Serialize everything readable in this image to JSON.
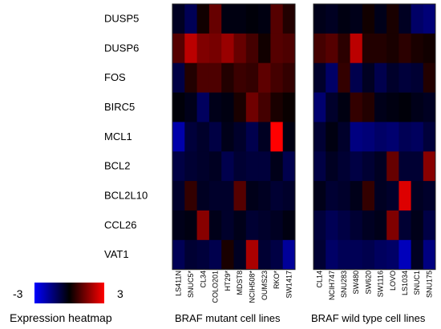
{
  "chart_data": {
    "type": "heatmap",
    "rows": [
      "DUSP5",
      "DUSP6",
      "FOS",
      "BIRC5",
      "MCL1",
      "BCL2",
      "BCL2L10",
      "CCL26",
      "VAT1"
    ],
    "panels": [
      {
        "group_label": "BRAF mutant cell lines",
        "columns": [
          "LS411N",
          "SNUC5*",
          "CL34",
          "COLO201",
          "HT29*",
          "MDST8",
          "NCIH508*",
          "OUMS23",
          "RKO*",
          "SW1417"
        ],
        "values": [
          [
            -0.4,
            -1.0,
            0.2,
            1.2,
            -0.2,
            -0.2,
            -0.1,
            -0.2,
            1.0,
            0.4
          ],
          [
            1.0,
            2.2,
            1.5,
            1.4,
            1.8,
            1.2,
            0.8,
            0.2,
            1.0,
            0.9
          ],
          [
            -0.8,
            0.4,
            0.9,
            0.9,
            0.4,
            0.7,
            0.6,
            1.1,
            0.8,
            0.6
          ],
          [
            -0.1,
            -0.3,
            -1.1,
            -0.3,
            -0.2,
            0.3,
            1.3,
            0.8,
            0.3,
            0.1
          ],
          [
            -2.0,
            -0.7,
            -0.5,
            -0.8,
            -0.3,
            -0.5,
            -0.9,
            -0.4,
            3.0,
            -0.2
          ],
          [
            -0.8,
            -0.6,
            -0.5,
            -0.4,
            -0.9,
            -0.6,
            -0.7,
            -0.7,
            -0.3,
            -0.9
          ],
          [
            -0.5,
            0.6,
            -0.4,
            -0.5,
            -0.5,
            1.0,
            -0.3,
            -0.4,
            -0.6,
            -0.5
          ],
          [
            -0.3,
            -0.2,
            1.6,
            -0.3,
            -0.5,
            -0.3,
            -0.6,
            -0.5,
            -0.4,
            -0.2
          ],
          [
            -1.0,
            -0.6,
            -0.7,
            -0.9,
            0.3,
            -0.4,
            2.0,
            -0.6,
            -0.8,
            -1.8
          ]
        ]
      },
      {
        "group_label": "BRAF  wild type cell lines",
        "columns": [
          "CL14",
          "NCIH747",
          "SNU283",
          "SW480",
          "SW620",
          "SW1116",
          "LOVO",
          "LS1034",
          "SNUC1",
          "SNU175"
        ],
        "values": [
          [
            -0.3,
            -0.4,
            -0.2,
            -0.3,
            0.2,
            -0.3,
            0.3,
            -0.4,
            -1.2,
            -1.4
          ],
          [
            0.8,
            1.0,
            0.5,
            2.2,
            0.4,
            0.4,
            0.3,
            0.5,
            0.3,
            0.2
          ],
          [
            -0.5,
            -1.2,
            0.6,
            -0.9,
            -0.4,
            -0.9,
            -0.5,
            -0.7,
            -0.6,
            0.4
          ],
          [
            -1.3,
            -0.5,
            -0.2,
            0.6,
            0.4,
            -0.3,
            -0.2,
            -0.1,
            -0.3,
            -0.4
          ],
          [
            -0.6,
            -0.2,
            -0.5,
            -1.5,
            -1.4,
            -1.2,
            -1.3,
            -1.0,
            -1.1,
            -0.7
          ],
          [
            -0.8,
            -0.4,
            -0.6,
            -0.8,
            -0.6,
            -0.4,
            1.2,
            -0.6,
            -0.6,
            1.6
          ],
          [
            -0.3,
            -0.6,
            -0.5,
            -0.3,
            0.6,
            -0.4,
            -0.5,
            2.6,
            -0.4,
            -0.5
          ],
          [
            -0.7,
            -1.0,
            -0.8,
            -0.6,
            -0.4,
            -0.3,
            1.5,
            -0.6,
            -0.3,
            -0.8
          ],
          [
            -0.6,
            -1.2,
            -1.0,
            -1.0,
            -0.9,
            -1.1,
            -1.2,
            -2.2,
            -0.4,
            -1.5
          ]
        ]
      }
    ],
    "color_scale": {
      "min": -3,
      "max": 3,
      "min_label": "-3",
      "max_label": "3",
      "colors": [
        "#0000ff",
        "#000000",
        "#ff0000"
      ],
      "caption": "Expression heatmap"
    }
  }
}
